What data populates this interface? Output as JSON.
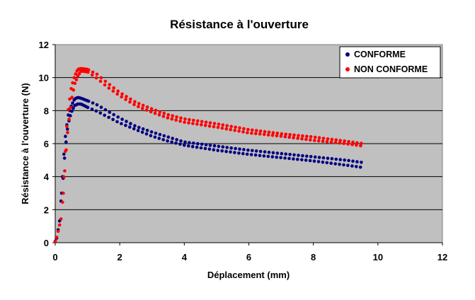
{
  "chart_data": {
    "type": "scatter",
    "title": "Résistance à l'ouverture",
    "xlabel": "Déplacement (mm)",
    "ylabel": "Résistance à l'ouverture (N)",
    "xlim": [
      0,
      12
    ],
    "ylim": [
      0,
      12
    ],
    "x_ticks": [
      "0",
      "2",
      "4",
      "6",
      "8",
      "10",
      "12"
    ],
    "y_ticks": [
      "0",
      "2",
      "4",
      "6",
      "8",
      "10",
      "12"
    ],
    "grid": "horizontal",
    "plot_background": "#c0c0c0",
    "legend_position": "top-right",
    "series": [
      {
        "name": "CONFORME",
        "color": "#000080",
        "upper": [
          [
            0.0,
            0.1
          ],
          [
            0.05,
            0.3
          ],
          [
            0.15,
            1.5
          ],
          [
            0.2,
            3.2
          ],
          [
            0.25,
            4.8
          ],
          [
            0.3,
            6.2
          ],
          [
            0.35,
            7.0
          ],
          [
            0.4,
            7.7
          ],
          [
            0.5,
            8.3
          ],
          [
            0.6,
            8.7
          ],
          [
            0.7,
            8.8
          ],
          [
            0.8,
            8.75
          ],
          [
            1.0,
            8.6
          ],
          [
            1.3,
            8.35
          ],
          [
            1.6,
            8.0
          ],
          [
            2.0,
            7.55
          ],
          [
            2.5,
            7.05
          ],
          [
            3.0,
            6.7
          ],
          [
            3.5,
            6.4
          ],
          [
            4.0,
            6.1
          ],
          [
            5.0,
            5.85
          ],
          [
            6.0,
            5.6
          ],
          [
            7.0,
            5.4
          ],
          [
            8.0,
            5.2
          ],
          [
            9.0,
            5.0
          ],
          [
            9.55,
            4.85
          ]
        ],
        "lower": [
          [
            0.2,
            3.0
          ],
          [
            0.25,
            4.0
          ],
          [
            0.3,
            5.4
          ],
          [
            0.35,
            6.4
          ],
          [
            0.4,
            7.2
          ],
          [
            0.5,
            7.9
          ],
          [
            0.6,
            8.3
          ],
          [
            0.7,
            8.4
          ],
          [
            0.8,
            8.4
          ],
          [
            1.0,
            8.2
          ],
          [
            1.3,
            7.95
          ],
          [
            1.6,
            7.65
          ],
          [
            2.0,
            7.25
          ],
          [
            2.5,
            6.85
          ],
          [
            3.0,
            6.45
          ],
          [
            3.5,
            6.15
          ],
          [
            4.0,
            5.9
          ],
          [
            5.0,
            5.6
          ],
          [
            6.0,
            5.35
          ],
          [
            7.0,
            5.15
          ],
          [
            8.0,
            4.95
          ],
          [
            9.0,
            4.7
          ],
          [
            9.55,
            4.55
          ]
        ]
      },
      {
        "name": "NON CONFORME",
        "color": "#ff0000",
        "upper": [
          [
            0.0,
            0.1
          ],
          [
            0.05,
            0.35
          ],
          [
            0.15,
            1.2
          ],
          [
            0.2,
            1.6
          ],
          [
            0.25,
            3.3
          ],
          [
            0.3,
            5.0
          ],
          [
            0.35,
            6.8
          ],
          [
            0.4,
            8.0
          ],
          [
            0.5,
            9.4
          ],
          [
            0.6,
            10.1
          ],
          [
            0.7,
            10.5
          ],
          [
            0.8,
            10.55
          ],
          [
            1.0,
            10.5
          ],
          [
            1.3,
            10.2
          ],
          [
            1.6,
            9.7
          ],
          [
            2.0,
            9.1
          ],
          [
            2.5,
            8.5
          ],
          [
            3.0,
            8.1
          ],
          [
            3.5,
            7.75
          ],
          [
            4.0,
            7.5
          ],
          [
            5.0,
            7.2
          ],
          [
            6.0,
            6.85
          ],
          [
            7.0,
            6.6
          ],
          [
            8.0,
            6.4
          ],
          [
            9.0,
            6.15
          ],
          [
            9.55,
            6.0
          ]
        ],
        "lower": [
          [
            0.25,
            3.0
          ],
          [
            0.3,
            4.5
          ],
          [
            0.35,
            5.9
          ],
          [
            0.4,
            7.0
          ],
          [
            0.5,
            8.6
          ],
          [
            0.6,
            9.6
          ],
          [
            0.7,
            10.1
          ],
          [
            0.8,
            10.4
          ],
          [
            1.0,
            10.35
          ],
          [
            1.3,
            9.95
          ],
          [
            1.6,
            9.45
          ],
          [
            2.0,
            8.9
          ],
          [
            2.5,
            8.3
          ],
          [
            3.0,
            7.9
          ],
          [
            3.5,
            7.55
          ],
          [
            4.0,
            7.3
          ],
          [
            5.0,
            7.0
          ],
          [
            6.0,
            6.65
          ],
          [
            7.0,
            6.45
          ],
          [
            8.0,
            6.2
          ],
          [
            9.0,
            6.0
          ],
          [
            9.55,
            5.85
          ]
        ]
      }
    ]
  }
}
